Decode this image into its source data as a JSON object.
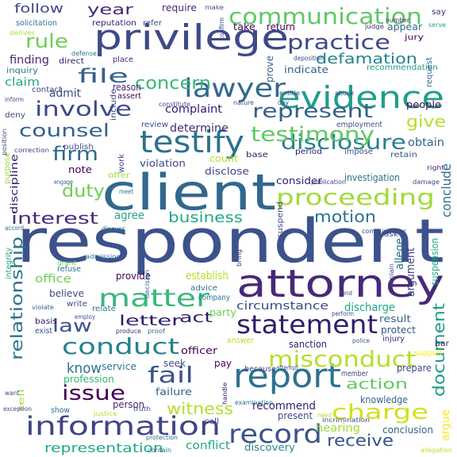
{
  "words": [
    {
      "text": "respondent",
      "color": "#3b528b"
    },
    {
      "text": "client",
      "color": "#31688e"
    },
    {
      "text": "attorney",
      "color": "#482878"
    },
    {
      "text": "privilege",
      "color": "#3e4989"
    },
    {
      "text": "evidence",
      "color": "#1f9e89"
    },
    {
      "text": "report",
      "color": "#2c728e"
    },
    {
      "text": "testify",
      "color": "#2c728e"
    },
    {
      "text": "statement",
      "color": "#2d1e6e"
    },
    {
      "text": "information",
      "color": "#414487"
    },
    {
      "text": "communication",
      "color": "#5ec962"
    },
    {
      "text": "lawyer",
      "color": "#31688e"
    },
    {
      "text": "misconduct",
      "color": "#b5de2b"
    },
    {
      "text": "conduct",
      "color": "#26828e"
    },
    {
      "text": "matter",
      "color": "#35b779"
    },
    {
      "text": "record",
      "color": "#3b528b"
    },
    {
      "text": "disclosure",
      "color": "#26828e"
    },
    {
      "text": "testimony",
      "color": "#5ec962"
    },
    {
      "text": "proceeding",
      "color": "#a0da39"
    },
    {
      "text": "represent",
      "color": "#33638d"
    },
    {
      "text": "involve",
      "color": "#3e4989"
    },
    {
      "text": "practice",
      "color": "#3e4989"
    },
    {
      "text": "charge",
      "color": "#d0e11c"
    },
    {
      "text": "issue",
      "color": "#440154"
    },
    {
      "text": "fail",
      "color": "#3b528b"
    },
    {
      "text": "file",
      "color": "#33638d"
    },
    {
      "text": "relationship",
      "color": "#2c728e"
    },
    {
      "text": "defamation",
      "color": "#26828e"
    },
    {
      "text": "counsel",
      "color": "#33638d"
    },
    {
      "text": "firm",
      "color": "#31688e"
    },
    {
      "text": "concern",
      "color": "#35b779"
    },
    {
      "text": "rule",
      "color": "#6ece58"
    },
    {
      "text": "interest",
      "color": "#472c7a"
    },
    {
      "text": "motion",
      "color": "#2c728e"
    },
    {
      "text": "document",
      "color": "#1f9e89"
    },
    {
      "text": "witness",
      "color": "#b5de2b"
    },
    {
      "text": "receive",
      "color": "#3b528b"
    },
    {
      "text": "duty",
      "color": "#6ece58"
    },
    {
      "text": "give",
      "color": "#b5de2b"
    },
    {
      "text": "law",
      "color": "#3b528b"
    },
    {
      "text": "letter",
      "color": "#2d1e6e"
    },
    {
      "text": "action",
      "color": "#5ec962"
    },
    {
      "text": "business",
      "color": "#22a884"
    },
    {
      "text": "know",
      "color": "#2c728e"
    },
    {
      "text": "year",
      "color": "#482878"
    },
    {
      "text": "act",
      "color": "#2d1e6e"
    },
    {
      "text": "representation",
      "color": "#22a884"
    },
    {
      "text": "circumstance",
      "color": "#3e4989"
    },
    {
      "text": "conclude",
      "color": "#31688e"
    },
    {
      "text": "recommend",
      "color": "#2d1e6e"
    },
    {
      "text": "hearing",
      "color": "#a0da39"
    },
    {
      "text": "conflict",
      "color": "#22a884"
    },
    {
      "text": "discovery",
      "color": "#26828e"
    },
    {
      "text": "follow",
      "color": "#414487"
    },
    {
      "text": "complaint",
      "color": "#2d1e6e"
    },
    {
      "text": "determine",
      "color": "#472c7a"
    },
    {
      "text": "claim",
      "color": "#22a884"
    },
    {
      "text": "finding",
      "color": "#482878"
    },
    {
      "text": "admit",
      "color": "#3e4989"
    },
    {
      "text": "consider",
      "color": "#2d1e6e"
    },
    {
      "text": "investigation",
      "color": "#2c728e"
    },
    {
      "text": "obtain",
      "color": "#33638d"
    },
    {
      "text": "agree",
      "color": "#22a884"
    },
    {
      "text": "office",
      "color": "#6ece58"
    },
    {
      "text": "provide",
      "color": "#440154"
    },
    {
      "text": "establish",
      "color": "#b5de2b"
    },
    {
      "text": "discharge",
      "color": "#22a884"
    },
    {
      "text": "result",
      "color": "#31688e"
    },
    {
      "text": "protect",
      "color": "#3b528b"
    },
    {
      "text": "sanction",
      "color": "#2d1e6e"
    },
    {
      "text": "service",
      "color": "#2c728e"
    },
    {
      "text": "profession",
      "color": "#35b779"
    },
    {
      "text": "officer",
      "color": "#440154"
    },
    {
      "text": "pay",
      "color": "#440154"
    },
    {
      "text": "seek",
      "color": "#3e4989"
    },
    {
      "text": "party",
      "color": "#6ece58"
    },
    {
      "text": "failure",
      "color": "#33638d"
    },
    {
      "text": "present",
      "color": "#3e4989"
    },
    {
      "text": "person",
      "color": "#482878"
    },
    {
      "text": "knowledge",
      "color": "#33638d"
    },
    {
      "text": "prepare",
      "color": "#3e4989"
    },
    {
      "text": "allege",
      "color": "#2c728e"
    },
    {
      "text": "argument",
      "color": "#414487"
    },
    {
      "text": "suspension",
      "color": "#22a884"
    },
    {
      "text": "argue",
      "color": "#fde725"
    },
    {
      "text": "conclusion",
      "color": "#33638d"
    },
    {
      "text": "require",
      "color": "#482878"
    },
    {
      "text": "take",
      "color": "#440154"
    },
    {
      "text": "return",
      "color": "#440154"
    },
    {
      "text": "appear",
      "color": "#31688e"
    },
    {
      "text": "jury",
      "color": "#440154"
    },
    {
      "text": "reputation",
      "color": "#2d1e6e"
    },
    {
      "text": "refer",
      "color": "#3b528b"
    },
    {
      "text": "solicitation",
      "color": "#2c728e"
    },
    {
      "text": "deliver",
      "color": "#b5de2b"
    },
    {
      "text": "say",
      "color": "#482878"
    },
    {
      "text": "make",
      "color": "#3e4989"
    },
    {
      "text": "judge",
      "color": "#482878"
    },
    {
      "text": "number",
      "color": "#482878"
    },
    {
      "text": "serve",
      "color": "#1f9e89"
    },
    {
      "text": "indicate",
      "color": "#33638d"
    },
    {
      "text": "prove",
      "color": "#33638d"
    },
    {
      "text": "recommendation",
      "color": "#1f9e89"
    },
    {
      "text": "request",
      "color": "#31688e"
    },
    {
      "text": "people",
      "color": "#440154"
    },
    {
      "text": "employment",
      "color": "#3b528b"
    },
    {
      "text": "period",
      "color": "#2d1e6e"
    },
    {
      "text": "impose",
      "color": "#3b528b"
    },
    {
      "text": "retain",
      "color": "#3b528b"
    },
    {
      "text": "right",
      "color": "#2d1e6e"
    },
    {
      "text": "base",
      "color": "#2d1e6e"
    },
    {
      "text": "count",
      "color": "#b5de2b"
    },
    {
      "text": "disclose",
      "color": "#3e4989"
    },
    {
      "text": "violation",
      "color": "#3e4989"
    },
    {
      "text": "note",
      "color": "#440154"
    },
    {
      "text": "offer",
      "color": "#a0da39"
    },
    {
      "text": "publish",
      "color": "#3b528b"
    },
    {
      "text": "review",
      "color": "#3e4989"
    },
    {
      "text": "include",
      "color": "#3e4989"
    },
    {
      "text": "contact",
      "color": "#3e4989"
    },
    {
      "text": "reason",
      "color": "#482878"
    },
    {
      "text": "assert",
      "color": "#440154"
    },
    {
      "text": "direct",
      "color": "#2d1e6e"
    },
    {
      "text": "place",
      "color": "#482878"
    },
    {
      "text": "inquiry",
      "color": "#2c728e"
    },
    {
      "text": "defense",
      "color": "#2c728e"
    },
    {
      "text": "deny",
      "color": "#3e4989"
    },
    {
      "text": "inform",
      "color": "#3e4989"
    },
    {
      "text": "ask",
      "color": "#3e4989"
    },
    {
      "text": "discuss",
      "color": "#2c728e"
    },
    {
      "text": "discipline",
      "color": "#2d1e6e"
    },
    {
      "text": "engage",
      "color": "#33638d"
    },
    {
      "text": "purpose",
      "color": "#a0da39"
    },
    {
      "text": "meet",
      "color": "#2c728e"
    },
    {
      "text": "integrity",
      "color": "#22a884"
    },
    {
      "text": "refuse",
      "color": "#2c728e"
    },
    {
      "text": "grant",
      "color": "#6ece58"
    },
    {
      "text": "admission",
      "color": "#2c728e"
    },
    {
      "text": "believe",
      "color": "#3e4989"
    },
    {
      "text": "write",
      "color": "#3e4989"
    },
    {
      "text": "employ",
      "color": "#3b528b"
    },
    {
      "text": "relate",
      "color": "#2c728e"
    },
    {
      "text": "produce",
      "color": "#482878"
    },
    {
      "text": "exist",
      "color": "#3b528b"
    },
    {
      "text": "basis",
      "color": "#2d1e6e"
    },
    {
      "text": "proof",
      "color": "#2c728e"
    },
    {
      "text": "answer",
      "color": "#b5de2b"
    },
    {
      "text": "police",
      "color": "#3b528b"
    },
    {
      "text": "bar",
      "color": "#2d1e6e"
    },
    {
      "text": "injury",
      "color": "#482878"
    },
    {
      "text": "support",
      "color": "#fde725"
    },
    {
      "text": "because",
      "color": "#3e4989"
    },
    {
      "text": "attempt",
      "color": "#3b528b"
    },
    {
      "text": "member",
      "color": "#3e4989"
    },
    {
      "text": "tell",
      "color": "#a0da39"
    },
    {
      "text": "want",
      "color": "#3e4989"
    },
    {
      "text": "exception",
      "color": "#3e4989"
    },
    {
      "text": "show",
      "color": "#2c728e"
    },
    {
      "text": "justice",
      "color": "#b5de2b"
    },
    {
      "text": "truth",
      "color": "#3e4989"
    },
    {
      "text": "call",
      "color": "#3e4989"
    },
    {
      "text": "handle",
      "color": "#2d1e6e"
    },
    {
      "text": "examination",
      "color": "#2c728e"
    },
    {
      "text": "need",
      "color": "#b5de2b"
    },
    {
      "text": "protection",
      "color": "#2c728e"
    },
    {
      "text": "contain",
      "color": "#2c728e"
    },
    {
      "text": "allegation",
      "color": "#b5de2b"
    },
    {
      "text": "company",
      "color": "#2c728e"
    },
    {
      "text": "advice",
      "color": "#2c728e"
    },
    {
      "text": "decision",
      "color": "#33638d"
    },
    {
      "text": "work",
      "color": "#3e4989"
    },
    {
      "text": "bring",
      "color": "#3e4989"
    },
    {
      "text": "explain",
      "color": "#3e4989"
    },
    {
      "text": "suspend",
      "color": "#3e4989"
    },
    {
      "text": "fund",
      "color": "#3e4989"
    },
    {
      "text": "perform",
      "color": "#3e4989"
    },
    {
      "text": "violate",
      "color": "#33638d"
    },
    {
      "text": "commissioner",
      "color": "#3e4989"
    },
    {
      "text": "accord",
      "color": "#2c728e"
    },
    {
      "text": "entitle",
      "color": "#3e4989"
    },
    {
      "text": "abuse",
      "color": "#3e4989"
    },
    {
      "text": "deposition",
      "color": "#3e4989"
    },
    {
      "text": "constitute",
      "color": "#3e4989"
    },
    {
      "text": "nature",
      "color": "#3e4989"
    },
    {
      "text": "day",
      "color": "#3e4989"
    },
    {
      "text": "position",
      "color": "#3e4989"
    },
    {
      "text": "correction",
      "color": "#3e4989"
    },
    {
      "text": "publication",
      "color": "#3e4989"
    },
    {
      "text": "damage",
      "color": "#3e4989"
    },
    {
      "text": "incrimination",
      "color": "#3e4989"
    },
    {
      "text": "confirm",
      "color": "#3e4989"
    }
  ]
}
